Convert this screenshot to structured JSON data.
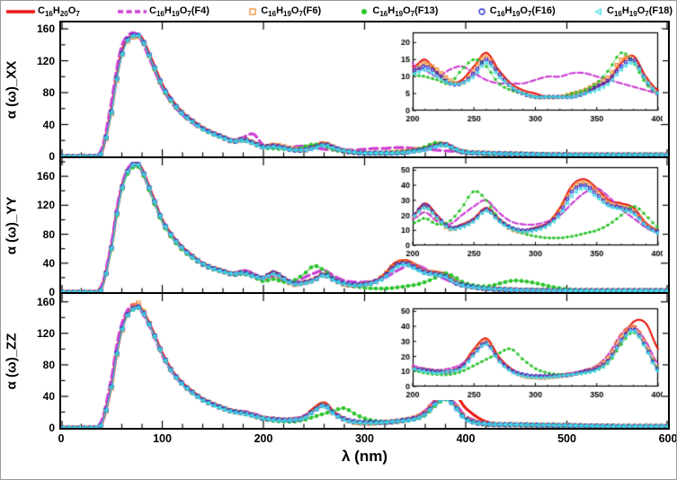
{
  "legend": {
    "items": [
      {
        "id": "base",
        "color": "#e8120c",
        "line": "solid",
        "marker": null,
        "label_segments": [
          {
            "t": "C"
          },
          {
            "sub": "16"
          },
          {
            "t": "H"
          },
          {
            "sub": "20"
          },
          {
            "t": "O"
          },
          {
            "sub": "7"
          }
        ]
      },
      {
        "id": "F4",
        "color": "#cc3fd3",
        "line": "dashed",
        "marker": null,
        "label_segments": [
          {
            "t": "C"
          },
          {
            "sub": "16"
          },
          {
            "t": "H"
          },
          {
            "sub": "19"
          },
          {
            "t": "O"
          },
          {
            "sub": "7"
          },
          {
            "t": "(F4)"
          }
        ]
      },
      {
        "id": "F6",
        "color": "#f0862c",
        "line": "thin",
        "marker": "square-open",
        "label_segments": [
          {
            "t": "C"
          },
          {
            "sub": "16"
          },
          {
            "t": "H"
          },
          {
            "sub": "19"
          },
          {
            "t": "O"
          },
          {
            "sub": "7"
          },
          {
            "t": "(F6)"
          }
        ]
      },
      {
        "id": "F13",
        "color": "#2ec32e",
        "line": "thin",
        "marker": "circle-filled",
        "label_segments": [
          {
            "t": "C"
          },
          {
            "sub": "16"
          },
          {
            "t": "H"
          },
          {
            "sub": "19"
          },
          {
            "t": "O"
          },
          {
            "sub": "7"
          },
          {
            "t": "(F13)"
          }
        ]
      },
      {
        "id": "F16",
        "color": "#2a2ad0",
        "line": "thin",
        "marker": "circle-open",
        "label_segments": [
          {
            "t": "C"
          },
          {
            "sub": "16"
          },
          {
            "t": "H"
          },
          {
            "sub": "19"
          },
          {
            "t": "O"
          },
          {
            "sub": "7"
          },
          {
            "t": "(F16)"
          }
        ]
      },
      {
        "id": "F18",
        "color": "#45dce8",
        "line": "thin",
        "marker": "triangle-open",
        "label_segments": [
          {
            "t": "C"
          },
          {
            "sub": "16"
          },
          {
            "t": "H"
          },
          {
            "sub": "19"
          },
          {
            "t": "O"
          },
          {
            "sub": "7"
          },
          {
            "t": "(F18)"
          }
        ]
      }
    ]
  },
  "chart_data": {
    "type": "line",
    "xlabel": "λ (nm)",
    "xlim": [
      0,
      600
    ],
    "xticks": [
      0,
      100,
      200,
      300,
      400,
      500,
      600
    ],
    "series_order": [
      "base",
      "F4",
      "F6",
      "F13",
      "F16",
      "F18"
    ],
    "x": [
      30,
      40,
      50,
      55,
      60,
      65,
      70,
      75,
      80,
      90,
      100,
      110,
      120,
      130,
      140,
      150,
      160,
      170,
      180,
      190,
      200,
      210,
      220,
      230,
      240,
      250,
      260,
      270,
      280,
      290,
      300,
      310,
      320,
      330,
      340,
      350,
      360,
      370,
      380,
      390,
      400,
      420,
      450,
      500,
      550,
      600
    ],
    "panels": [
      {
        "key": "XX",
        "ylabel": "α (ω)_XX",
        "ylim": [
          0,
          168
        ],
        "yticks": [
          0,
          40,
          80,
          120,
          160
        ],
        "inset": {
          "xlim": [
            200,
            400
          ],
          "xticks": [
            200,
            250,
            300,
            350,
            400
          ],
          "ylim": [
            0,
            23
          ],
          "yticks": [
            0,
            5,
            10,
            15,
            20
          ]
        },
        "series": {
          "base": [
            0,
            5,
            60,
            100,
            130,
            146,
            151,
            153,
            148,
            120,
            90,
            70,
            55,
            45,
            36,
            30,
            25,
            20,
            22,
            18,
            13,
            15,
            11,
            8,
            9,
            13,
            17,
            12,
            8,
            6,
            5,
            4,
            4,
            4,
            5,
            7,
            9,
            14,
            16,
            10,
            6,
            4,
            3,
            2,
            2,
            2
          ],
          "F4": [
            0,
            9,
            70,
            110,
            139,
            150,
            155,
            153,
            144,
            115,
            86,
            66,
            52,
            42,
            34,
            29,
            25,
            21,
            24,
            28,
            14,
            12,
            10,
            12,
            13,
            11,
            9,
            8,
            8,
            8,
            9,
            10,
            10,
            11,
            11,
            10,
            9,
            8,
            7,
            6,
            5,
            4,
            3,
            2,
            2,
            2
          ],
          "F6": [
            0,
            4,
            55,
            95,
            126,
            143,
            149,
            151,
            147,
            118,
            88,
            68,
            54,
            44,
            35,
            29,
            24,
            19,
            21,
            17,
            12,
            14,
            12,
            9,
            8,
            12,
            16,
            11,
            7,
            5,
            4,
            4,
            4,
            5,
            6,
            8,
            10,
            15,
            15,
            9,
            5,
            4,
            3,
            2,
            2,
            2
          ],
          "F13": [
            0,
            5,
            58,
            98,
            128,
            144,
            150,
            152,
            146,
            117,
            87,
            67,
            53,
            43,
            34,
            28,
            23,
            19,
            20,
            16,
            11,
            10,
            9,
            8,
            12,
            15,
            13,
            8,
            6,
            5,
            4,
            4,
            4,
            5,
            6,
            8,
            12,
            17,
            14,
            8,
            5,
            3,
            3,
            2,
            2,
            2
          ],
          "F16": [
            0,
            5,
            57,
            97,
            127,
            145,
            151,
            153,
            147,
            119,
            89,
            69,
            54,
            44,
            35,
            29,
            24,
            19,
            21,
            17,
            12,
            13,
            11,
            8,
            8,
            11,
            15,
            11,
            7,
            5,
            4,
            4,
            4,
            4,
            5,
            7,
            9,
            13,
            15,
            9,
            5,
            4,
            3,
            2,
            2,
            2
          ],
          "F18": [
            0,
            5,
            56,
            96,
            126,
            144,
            150,
            152,
            146,
            118,
            88,
            68,
            53,
            43,
            34,
            28,
            23,
            19,
            20,
            16,
            11,
            12,
            10,
            8,
            8,
            10,
            14,
            10,
            7,
            5,
            4,
            4,
            4,
            4,
            5,
            6,
            8,
            12,
            14,
            9,
            5,
            4,
            3,
            2,
            2,
            2
          ]
        }
      },
      {
        "key": "YY",
        "ylabel": "α (ω)_YY",
        "ylim": [
          0,
          185
        ],
        "yticks": [
          0,
          40,
          80,
          120,
          160
        ],
        "inset": {
          "xlim": [
            200,
            400
          ],
          "xticks": [
            200,
            250,
            300,
            350,
            400
          ],
          "ylim": [
            0,
            52
          ],
          "yticks": [
            0,
            10,
            20,
            30,
            40,
            50
          ]
        },
        "series": {
          "base": [
            0,
            6,
            65,
            110,
            145,
            166,
            175,
            178,
            170,
            135,
            100,
            78,
            62,
            50,
            40,
            34,
            30,
            26,
            28,
            24,
            20,
            28,
            20,
            12,
            14,
            18,
            25,
            18,
            12,
            10,
            12,
            15,
            25,
            40,
            44,
            38,
            30,
            28,
            25,
            15,
            10,
            5,
            3,
            2,
            2,
            2
          ],
          "F4": [
            0,
            9,
            70,
            115,
            148,
            168,
            177,
            176,
            167,
            132,
            98,
            76,
            60,
            48,
            39,
            33,
            29,
            26,
            30,
            26,
            18,
            22,
            16,
            14,
            20,
            26,
            30,
            22,
            16,
            14,
            14,
            16,
            20,
            28,
            35,
            38,
            32,
            24,
            18,
            12,
            8,
            5,
            3,
            2,
            2,
            2
          ],
          "F6": [
            0,
            5,
            62,
            107,
            142,
            164,
            174,
            177,
            168,
            133,
            98,
            76,
            60,
            49,
            39,
            33,
            29,
            25,
            27,
            23,
            19,
            26,
            18,
            11,
            13,
            17,
            24,
            17,
            11,
            9,
            11,
            14,
            24,
            38,
            42,
            36,
            28,
            26,
            23,
            14,
            9,
            5,
            3,
            2,
            2,
            2
          ],
          "F13": [
            0,
            5,
            60,
            105,
            140,
            161,
            171,
            174,
            166,
            130,
            96,
            74,
            58,
            47,
            38,
            32,
            28,
            24,
            25,
            21,
            15,
            18,
            14,
            16,
            25,
            36,
            30,
            18,
            12,
            8,
            6,
            5,
            5,
            6,
            8,
            10,
            14,
            20,
            26,
            20,
            12,
            8,
            16,
            4,
            2,
            2
          ],
          "F16": [
            0,
            5,
            63,
            108,
            143,
            165,
            175,
            178,
            169,
            134,
            99,
            77,
            61,
            49,
            39,
            33,
            29,
            25,
            27,
            23,
            20,
            27,
            19,
            12,
            13,
            17,
            24,
            17,
            12,
            10,
            11,
            14,
            22,
            36,
            40,
            34,
            27,
            25,
            22,
            13,
            9,
            5,
            3,
            2,
            2,
            2
          ],
          "F18": [
            0,
            5,
            62,
            107,
            142,
            164,
            174,
            177,
            168,
            133,
            98,
            76,
            60,
            48,
            39,
            32,
            28,
            25,
            26,
            22,
            19,
            25,
            18,
            11,
            12,
            16,
            23,
            16,
            11,
            9,
            10,
            13,
            20,
            33,
            38,
            32,
            26,
            24,
            21,
            13,
            8,
            5,
            3,
            2,
            2,
            2
          ]
        }
      },
      {
        "key": "ZZ",
        "ylabel": "α (ω)_ZZ",
        "ylim": [
          0,
          170
        ],
        "yticks": [
          0,
          40,
          80,
          120,
          160
        ],
        "inset": {
          "xlim": [
            200,
            400
          ],
          "xticks": [
            200,
            250,
            300,
            350,
            400
          ],
          "ylim": [
            0,
            52
          ],
          "yticks": [
            0,
            10,
            20,
            30,
            40,
            50
          ]
        },
        "series": {
          "base": [
            0,
            5,
            55,
            95,
            125,
            143,
            151,
            154,
            150,
            125,
            95,
            72,
            57,
            46,
            37,
            31,
            26,
            22,
            20,
            17,
            13,
            11,
            10,
            10,
            14,
            25,
            32,
            20,
            12,
            8,
            7,
            7,
            8,
            9,
            10,
            12,
            18,
            30,
            43,
            42,
            25,
            8,
            4,
            3,
            2,
            2
          ],
          "F4": [
            0,
            9,
            65,
            105,
            132,
            148,
            156,
            155,
            147,
            122,
            92,
            70,
            55,
            44,
            36,
            30,
            25,
            21,
            21,
            18,
            14,
            12,
            11,
            12,
            15,
            22,
            28,
            18,
            11,
            8,
            7,
            7,
            8,
            9,
            11,
            14,
            22,
            35,
            40,
            30,
            15,
            6,
            4,
            3,
            2,
            2
          ],
          "F6": [
            0,
            4,
            52,
            92,
            122,
            141,
            153,
            159,
            152,
            124,
            94,
            71,
            56,
            45,
            36,
            30,
            25,
            21,
            19,
            16,
            12,
            11,
            10,
            10,
            13,
            23,
            30,
            18,
            11,
            7,
            6,
            6,
            7,
            8,
            10,
            13,
            20,
            34,
            40,
            28,
            12,
            5,
            4,
            3,
            2,
            2
          ],
          "F13": [
            0,
            5,
            53,
            93,
            123,
            141,
            149,
            152,
            149,
            123,
            93,
            70,
            55,
            44,
            35,
            29,
            24,
            20,
            18,
            15,
            11,
            9,
            8,
            8,
            10,
            14,
            18,
            22,
            25,
            18,
            12,
            9,
            8,
            8,
            9,
            11,
            16,
            28,
            36,
            26,
            12,
            5,
            4,
            3,
            2,
            2
          ],
          "F16": [
            0,
            5,
            54,
            94,
            124,
            142,
            150,
            154,
            149,
            124,
            94,
            71,
            56,
            45,
            36,
            30,
            25,
            21,
            19,
            16,
            12,
            11,
            10,
            10,
            13,
            22,
            29,
            18,
            11,
            8,
            7,
            7,
            7,
            8,
            10,
            12,
            18,
            31,
            38,
            26,
            11,
            5,
            4,
            3,
            2,
            2
          ],
          "F18": [
            0,
            5,
            53,
            93,
            123,
            141,
            149,
            153,
            148,
            123,
            93,
            70,
            55,
            44,
            35,
            29,
            24,
            20,
            18,
            15,
            12,
            10,
            9,
            10,
            12,
            21,
            28,
            17,
            10,
            7,
            6,
            6,
            7,
            8,
            9,
            11,
            17,
            30,
            37,
            25,
            10,
            5,
            4,
            3,
            2,
            2
          ]
        }
      }
    ]
  }
}
